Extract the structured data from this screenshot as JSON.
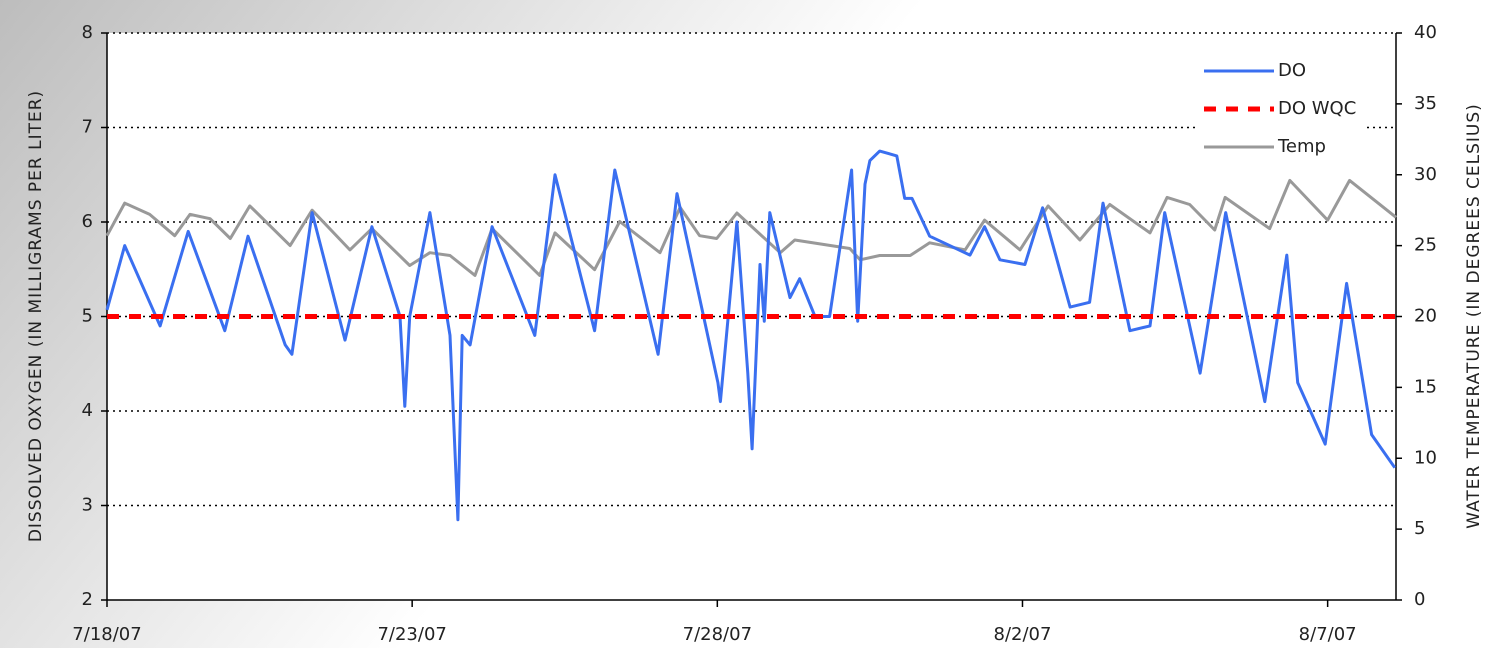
{
  "chart_data": {
    "type": "line",
    "ylabel": "DISSOLVED OXYGEN (IN MILLIGRAMS PER LITER)",
    "y2label": "WATER TEMPERATURE (IN DEGREES CELSIUS)",
    "xlim": [
      0,
      21.12
    ],
    "xticks": [
      {
        "value": 0,
        "label": "7/18/07"
      },
      {
        "value": 5,
        "label": "7/23/07"
      },
      {
        "value": 10,
        "label": "7/28/07"
      },
      {
        "value": 15,
        "label": "8/2/07"
      },
      {
        "value": 20,
        "label": "8/7/07"
      }
    ],
    "ylim": [
      2,
      8
    ],
    "yticks": [
      2,
      3,
      4,
      5,
      6,
      7,
      8
    ],
    "y2lim": [
      0,
      40
    ],
    "y2ticks": [
      0,
      5,
      10,
      15,
      20,
      25,
      30,
      35,
      40
    ],
    "grid": true,
    "legend": "upper right",
    "series": [
      {
        "name": "DO",
        "color": "#3a6ff0",
        "style": "solid",
        "x": [
          0,
          0.29,
          0.87,
          1.33,
          1.93,
          2.31,
          2.92,
          3.03,
          3.36,
          3.9,
          4.34,
          4.8,
          4.88,
          4.96,
          5.29,
          5.62,
          5.75,
          5.82,
          5.95,
          6.31,
          7.01,
          7.34,
          7.99,
          8.32,
          9.03,
          9.34,
          10.01,
          10.05,
          10.32,
          10.5,
          10.57,
          10.7,
          10.77,
          10.86,
          11.19,
          11.35,
          11.6,
          11.84,
          12.2,
          12.3,
          12.42,
          12.5,
          12.66,
          12.94,
          13.07,
          13.19,
          13.48,
          14.14,
          14.38,
          14.63,
          15.04,
          15.33,
          15.78,
          16.1,
          16.32,
          16.76,
          17.09,
          17.33,
          17.91,
          18.33,
          18.97,
          19.33,
          19.51,
          19.96,
          20.31,
          20.72,
          21.1
        ],
        "values": [
          5.07,
          5.75,
          4.9,
          5.9,
          4.85,
          5.85,
          4.7,
          4.6,
          6.1,
          4.75,
          5.95,
          5.0,
          4.05,
          5.0,
          6.1,
          4.8,
          2.85,
          4.8,
          4.7,
          5.95,
          4.8,
          6.5,
          4.85,
          6.55,
          4.6,
          6.3,
          4.3,
          4.1,
          6.0,
          4.4,
          3.6,
          5.55,
          4.95,
          6.1,
          5.2,
          5.4,
          5.0,
          5.0,
          6.55,
          4.95,
          6.4,
          6.65,
          6.75,
          6.7,
          6.25,
          6.25,
          5.85,
          5.65,
          5.95,
          5.6,
          5.55,
          6.15,
          5.1,
          5.15,
          6.2,
          4.85,
          4.9,
          6.1,
          4.4,
          6.1,
          4.1,
          5.65,
          4.3,
          3.65,
          5.35,
          3.75,
          3.4
        ]
      },
      {
        "name": "DO WQC",
        "color": "#ff0000",
        "style": "dashed",
        "x": [
          0,
          21.12
        ],
        "values": [
          5,
          5
        ]
      },
      {
        "name": "Temp",
        "color": "#999999",
        "style": "solid",
        "axis": "y2",
        "x": [
          0,
          0.29,
          0.7,
          1.11,
          1.36,
          1.69,
          2.02,
          2.34,
          3.0,
          3.36,
          3.98,
          4.34,
          4.96,
          5.29,
          5.62,
          6.03,
          6.31,
          7.09,
          7.34,
          7.99,
          8.4,
          9.06,
          9.39,
          9.71,
          9.99,
          10.32,
          11.03,
          11.27,
          12.17,
          12.34,
          12.66,
          13.16,
          13.48,
          14.06,
          14.38,
          14.96,
          15.42,
          15.94,
          16.43,
          17.09,
          17.37,
          17.74,
          18.15,
          18.32,
          19.05,
          19.38,
          20.0,
          20.36,
          21.12
        ],
        "values": [
          25.7,
          28,
          27.2,
          25.7,
          27.2,
          26.9,
          25.5,
          27.8,
          25,
          27.5,
          24.7,
          26.2,
          23.6,
          24.5,
          24.3,
          22.9,
          26.2,
          22.9,
          25.9,
          23.3,
          26.7,
          24.5,
          27.7,
          25.7,
          25.5,
          27.3,
          24.5,
          25.4,
          24.8,
          24,
          24.3,
          24.3,
          25.2,
          24.7,
          26.8,
          24.7,
          27.8,
          25.4,
          27.9,
          25.9,
          28.4,
          27.9,
          26.1,
          28.4,
          26.2,
          29.6,
          26.8,
          29.6,
          27
        ]
      }
    ]
  }
}
